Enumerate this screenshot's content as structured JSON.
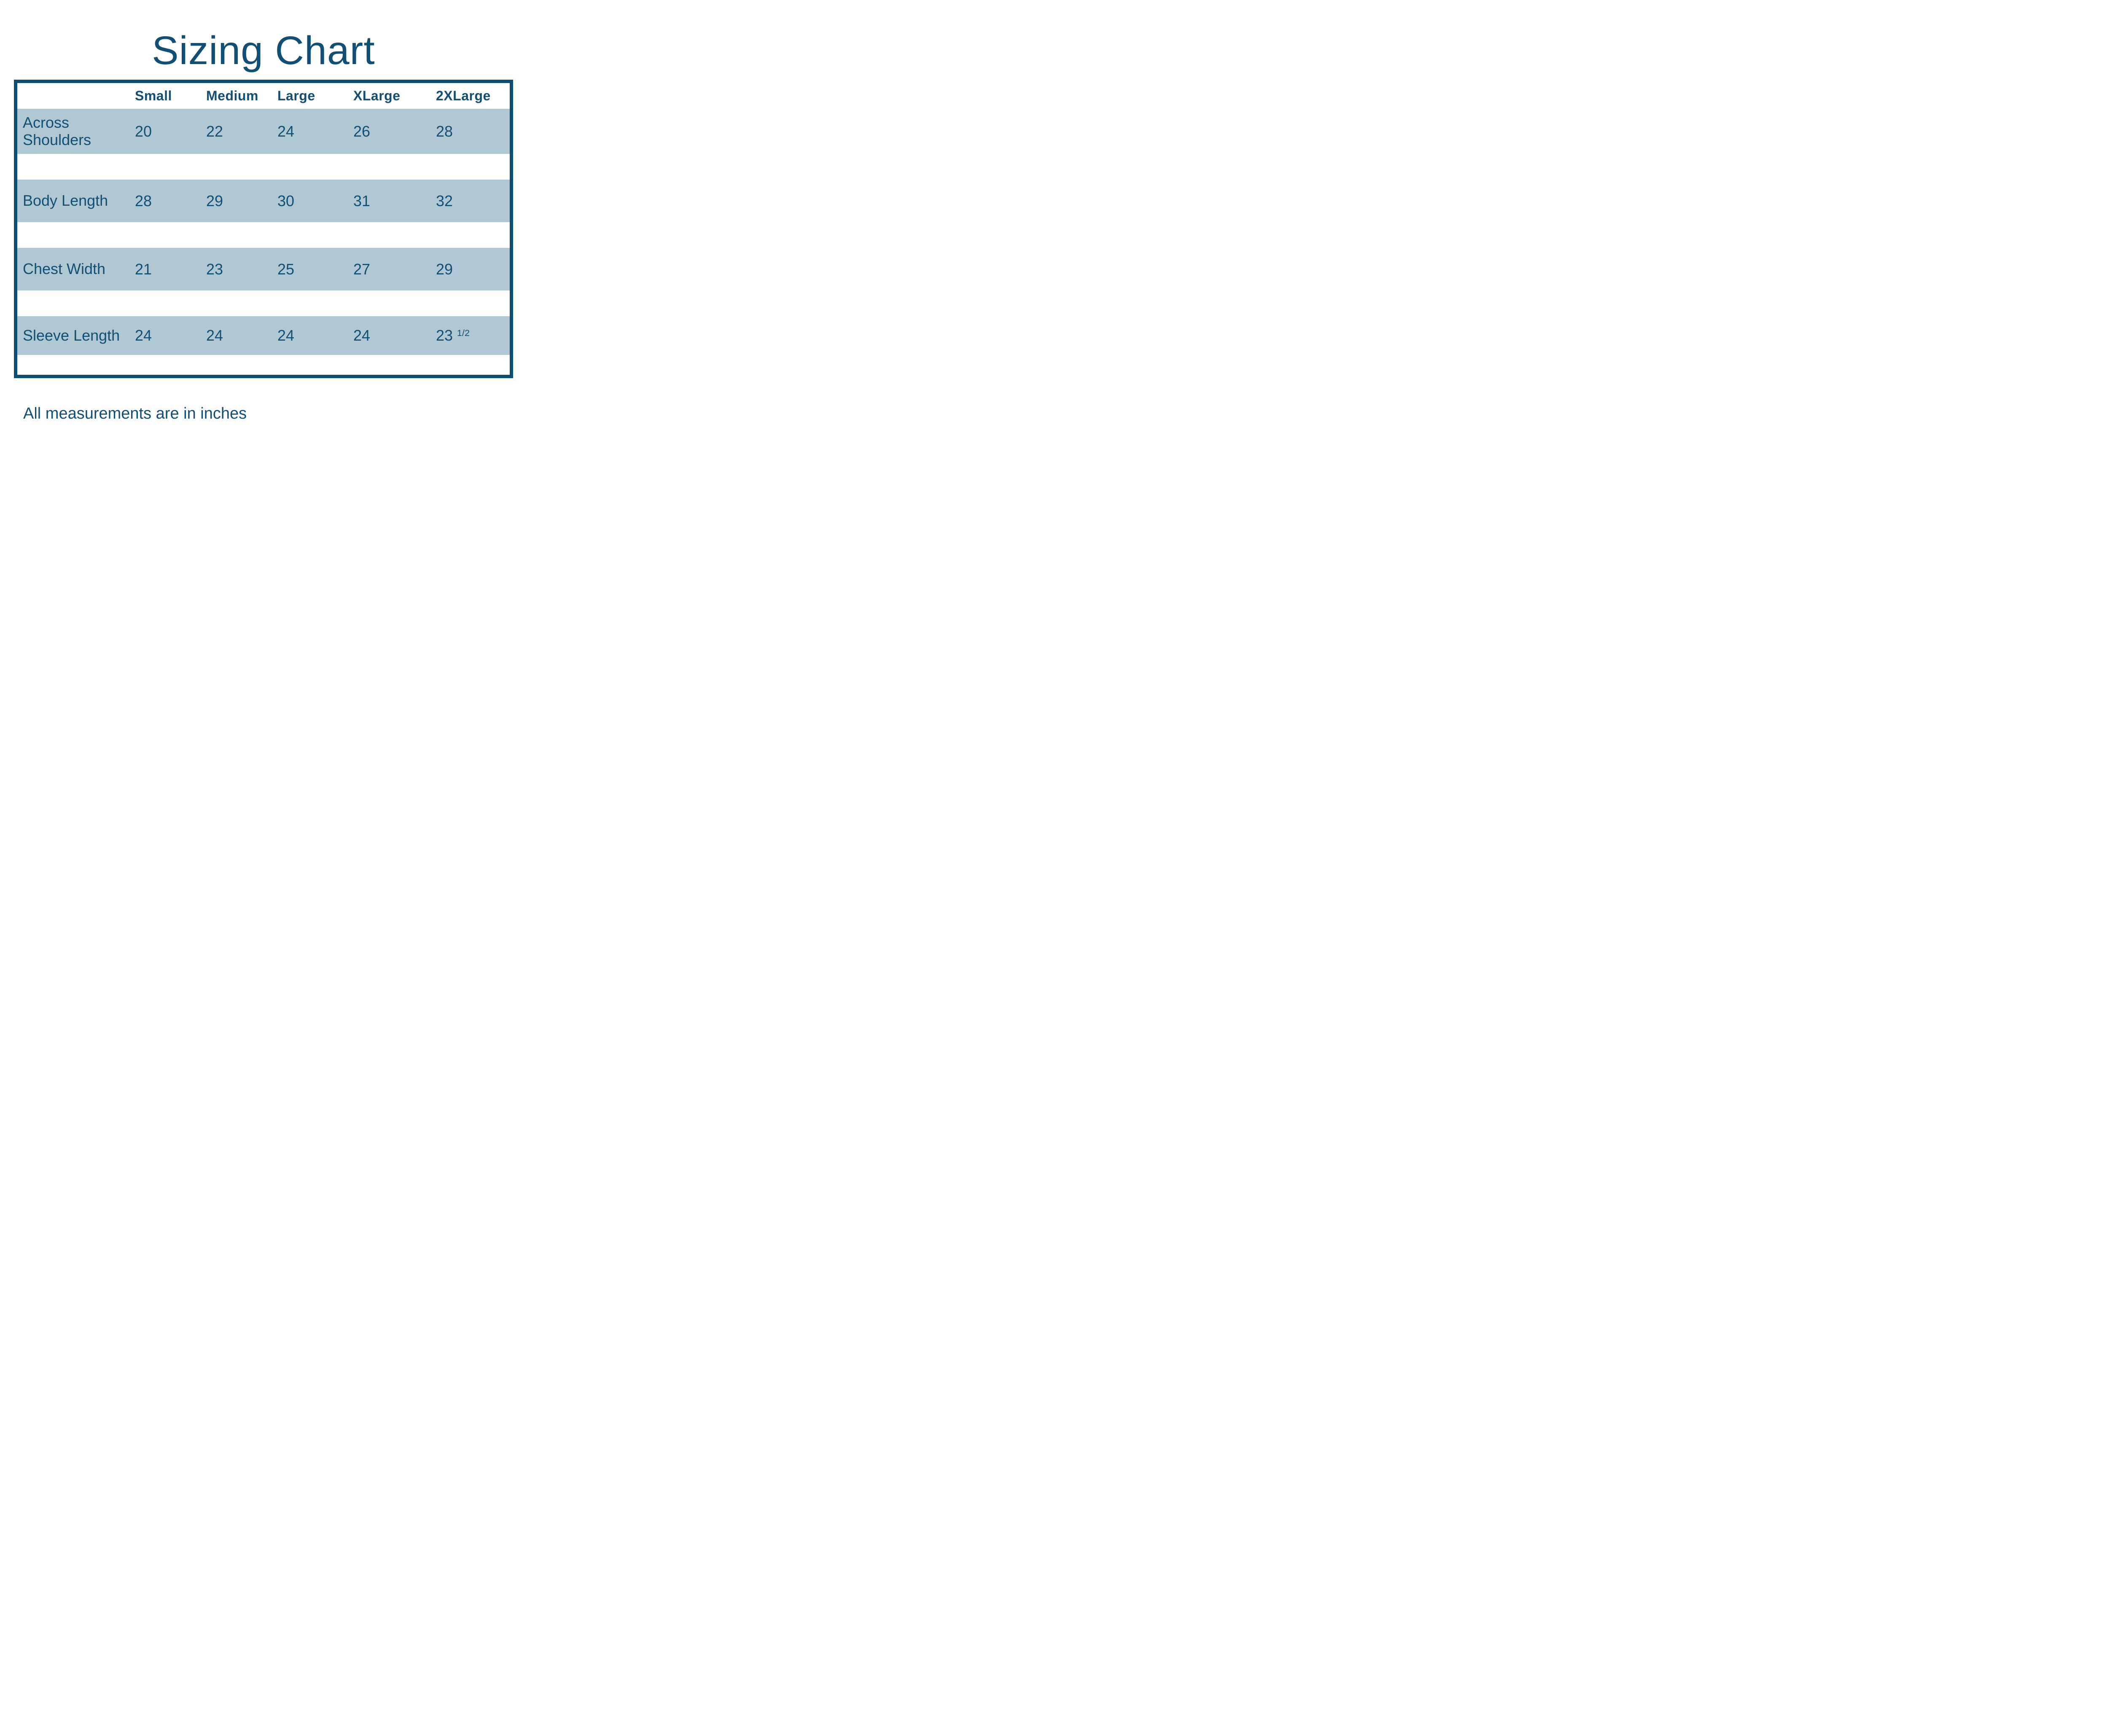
{
  "chart_data": {
    "type": "table",
    "title": "Sizing Chart",
    "columns": [
      "",
      "Small",
      "Medium",
      "Large",
      "XLarge",
      "2XLarge"
    ],
    "rows": [
      {
        "label": "Across Shoulders",
        "values": [
          "20",
          "22",
          "24",
          "26",
          "28"
        ]
      },
      {
        "label": "Body Length",
        "values": [
          "28",
          "29",
          "30",
          "31",
          "32"
        ]
      },
      {
        "label": "Chest Width",
        "values": [
          "21",
          "23",
          "25",
          "27",
          "29"
        ]
      },
      {
        "label": "Sleeve Length",
        "values": [
          "24",
          "24",
          "24",
          "24",
          {
            "base": "23",
            "sup": "1/2"
          }
        ]
      }
    ],
    "note": "All measurements are in inches",
    "layout": {
      "banded_rows": true,
      "legend": "none",
      "grid": "off"
    },
    "colors": {
      "text_navy": "#115074",
      "border_navy": "#0E4E72",
      "row_band_blue": "#B0C8D4",
      "background": "#FFFFFF"
    }
  }
}
